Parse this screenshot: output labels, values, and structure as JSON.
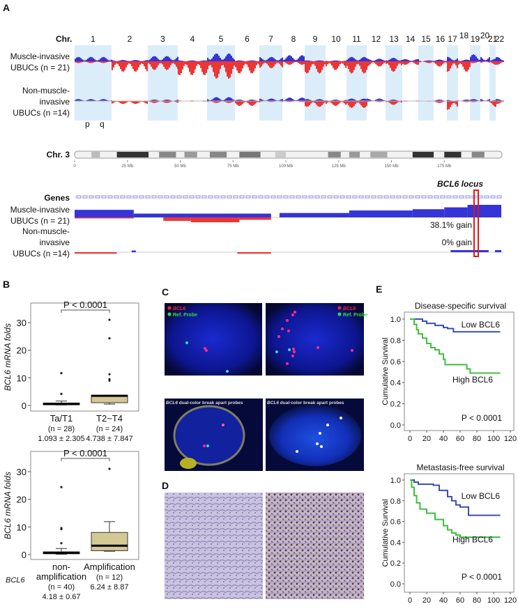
{
  "panels": {
    "a": "A",
    "b": "B",
    "c": "C",
    "d": "D",
    "e": "E"
  },
  "genome": {
    "chr_label": "Chr.",
    "chromosomes": [
      "1",
      "2",
      "3",
      "4",
      "5",
      "6",
      "7",
      "8",
      "9",
      "10",
      "11",
      "12",
      "13",
      "14",
      "15",
      "16",
      "17",
      "18",
      "19",
      "20",
      "21",
      "22"
    ],
    "arm_p": "p",
    "arm_q": "q",
    "row_muscle": [
      "Muscle-invasive",
      "UBUCs (n = 21)"
    ],
    "row_nonmuscle": [
      "Non-muscle-",
      "invasive",
      "UBUCs (n =14)"
    ],
    "colors": {
      "gain": "#3434d8",
      "loss": "#ee3535",
      "band": "#dcedfa"
    },
    "muscle_gain": [
      0.5,
      0.15,
      0.6,
      0.1,
      0.9,
      0.1,
      0.5,
      0.7,
      0.1,
      0.1,
      0.5,
      0.3,
      0.4,
      0.25,
      0.1,
      0.2,
      0.5,
      0.2,
      0.8,
      0.6,
      0.3,
      0.5
    ],
    "muscle_loss": [
      0.1,
      0.6,
      0.5,
      0.8,
      1.0,
      0.7,
      0.4,
      0.2,
      0.7,
      0.5,
      0.7,
      0.3,
      0.6,
      0.2,
      0.1,
      0.3,
      0.6,
      0.6,
      0.1,
      0.1,
      0.2,
      0.2
    ],
    "nonmuscle_gain": [
      0.4,
      0.05,
      0.3,
      0.1,
      0.8,
      0.3,
      0.5,
      0.7,
      0.4,
      0.3,
      0.5,
      0.5,
      0.3,
      0.1,
      0.05,
      0.3,
      0.2,
      0.3,
      0.4,
      0.5,
      0.2,
      0.4
    ],
    "nonmuscle_loss": [
      0.05,
      0.3,
      0.2,
      0.05,
      0.2,
      0.5,
      0.1,
      0.1,
      0.6,
      0.5,
      0.7,
      0.1,
      0.4,
      0.05,
      0.05,
      0.2,
      0.9,
      0.1,
      0.1,
      0.1,
      0.6,
      0.3
    ]
  },
  "chr3": {
    "label": "Chr. 3",
    "ticks": [
      "0",
      "25 Mb",
      "50 Mb",
      "75 Mb",
      "100 Mb",
      "125 Mb",
      "150 Mb",
      "175 Mb"
    ],
    "genes_label": "Genes",
    "locus_label": "BCL6 locus",
    "row_muscle": [
      "Muscle-invasive",
      "UBUCs (n = 21)"
    ],
    "row_nonmuscle": [
      "Non-muscle-",
      "invasive",
      "UBUCs (n =14)"
    ],
    "muscle_gain_text": "38.1% gain",
    "nonmuscle_gain_text": "0% gain",
    "muscle_gain_segments": [
      [
        0,
        28,
        0.6
      ],
      [
        28,
        93,
        0.3
      ],
      [
        97,
        130,
        0.35
      ],
      [
        130,
        160,
        0.55
      ],
      [
        160,
        175,
        0.65
      ],
      [
        175,
        186,
        0.8
      ],
      [
        186,
        202,
        1.0
      ]
    ],
    "muscle_loss_segments": [
      [
        0,
        28,
        0.15
      ],
      [
        42,
        55,
        0.5
      ],
      [
        55,
        78,
        0.7
      ],
      [
        78,
        93,
        0.35
      ]
    ],
    "nonmuscle_gain_segments": [
      [
        27,
        29,
        0.5
      ],
      [
        178,
        196,
        0.6
      ],
      [
        199,
        202,
        0.6
      ]
    ],
    "nonmuscle_loss_segments": [
      [
        0,
        20,
        0.35
      ],
      [
        77,
        93,
        0.35
      ]
    ]
  },
  "chart_data": [
    {
      "type": "box",
      "ylabel": "BCL6 mRNA folds",
      "ylim": [
        -1.5,
        35
      ],
      "yticks": [
        0,
        10,
        20,
        30
      ],
      "annotation": "P < 0.0001",
      "categories": [
        {
          "label": "Ta/T1",
          "n": "(n = 28)",
          "stat": "1.093 ± 2.305",
          "q1": 0.3,
          "median": 0.5,
          "q3": 0.9,
          "whisker_low": 0.2,
          "whisker_high": 1.6,
          "outliers": [
            4.2,
            11.7
          ]
        },
        {
          "label": "T2~T4",
          "n": "(n = 24)",
          "stat": "4.738 ± 7.847",
          "q1": 1.0,
          "median": 3.5,
          "q3": 3.7,
          "whisker_low": 0.5,
          "whisker_high": 3.7,
          "outliers": [
            9.0,
            9.5,
            11.3,
            24.3,
            31.0
          ]
        }
      ]
    },
    {
      "type": "box",
      "ylabel": "BCL6 mRNA folds",
      "ylim": [
        -1.5,
        35
      ],
      "yticks": [
        0,
        10,
        20,
        30
      ],
      "annotation": "P < 0.0001",
      "group_label": "BCL6",
      "categories": [
        {
          "label": "non-",
          "label2": "amplification",
          "n": "(n = 40)",
          "stat": "4.18 ± 0.67",
          "q1": 0.3,
          "median": 0.6,
          "q3": 1.0,
          "whisker_low": 0.1,
          "whisker_high": 2.2,
          "outliers": [
            4.1,
            9.2,
            9.6,
            24.4
          ]
        },
        {
          "label": "Amplification",
          "label2": "",
          "n": "(n = 12)",
          "stat": "6.24 ± 8.87",
          "q1": 1.4,
          "median": 3.2,
          "q3": 8.0,
          "whisker_low": 1.2,
          "whisker_high": 11.9,
          "outliers": [
            31.0
          ]
        }
      ]
    },
    {
      "type": "line",
      "title": "Disease-specific survival",
      "ylabel": "Cumulative Survival",
      "xlim": [
        0,
        120
      ],
      "ylim": [
        0,
        1.0
      ],
      "xticks": [
        "0",
        "20",
        "40",
        "60",
        "80",
        "100",
        "120"
      ],
      "yticks": [
        "0.0",
        "0.2",
        "0.4",
        "0.6",
        "0.8",
        "1.0"
      ],
      "annotation": "P < 0.0001",
      "series": [
        {
          "name": "Low BCL6",
          "color": "#3b4fb0",
          "x": [
            0,
            10,
            15,
            20,
            30,
            40,
            45,
            52,
            108
          ],
          "y": [
            1,
            1,
            0.98,
            0.96,
            0.94,
            0.92,
            0.91,
            0.88,
            0.88
          ]
        },
        {
          "name": "High BCL6",
          "color": "#3fbf3f",
          "x": [
            0,
            5,
            8,
            10,
            15,
            20,
            25,
            30,
            35,
            40,
            42,
            65,
            68,
            72,
            108
          ],
          "y": [
            1,
            0.95,
            0.9,
            0.86,
            0.82,
            0.77,
            0.73,
            0.71,
            0.67,
            0.62,
            0.57,
            0.57,
            0.53,
            0.49,
            0.49
          ]
        }
      ]
    },
    {
      "type": "line",
      "title": "Metastasis-free survival",
      "ylabel": "Cumulative Survival",
      "xlim": [
        0,
        120
      ],
      "ylim": [
        0,
        1.0
      ],
      "xticks": [
        "0",
        "20",
        "40",
        "60",
        "80",
        "100",
        "120"
      ],
      "yticks": [
        "0.0",
        "0.2",
        "0.4",
        "0.6",
        "0.8",
        "1.0"
      ],
      "annotation": "P < 0.0001",
      "series": [
        {
          "name": "Low BCL6",
          "color": "#3b4fb0",
          "x": [
            0,
            5,
            10,
            28,
            35,
            45,
            50,
            55,
            60,
            68,
            70,
            108
          ],
          "y": [
            1,
            0.98,
            0.96,
            0.95,
            0.9,
            0.84,
            0.8,
            0.76,
            0.74,
            0.74,
            0.66,
            0.66
          ]
        },
        {
          "name": "High BCL6",
          "color": "#3fbf3f",
          "x": [
            0,
            2,
            5,
            8,
            12,
            20,
            30,
            40,
            45,
            50,
            55,
            60,
            108
          ],
          "y": [
            1,
            0.93,
            0.85,
            0.78,
            0.72,
            0.68,
            0.62,
            0.56,
            0.52,
            0.49,
            0.47,
            0.45,
            0.45
          ]
        }
      ]
    }
  ],
  "fish": {
    "legend_target": "BCL6",
    "legend_ref": "Ref. Probe",
    "breakapart_gene": "BCL6",
    "breakapart_text": " dual-color break apart probes"
  }
}
